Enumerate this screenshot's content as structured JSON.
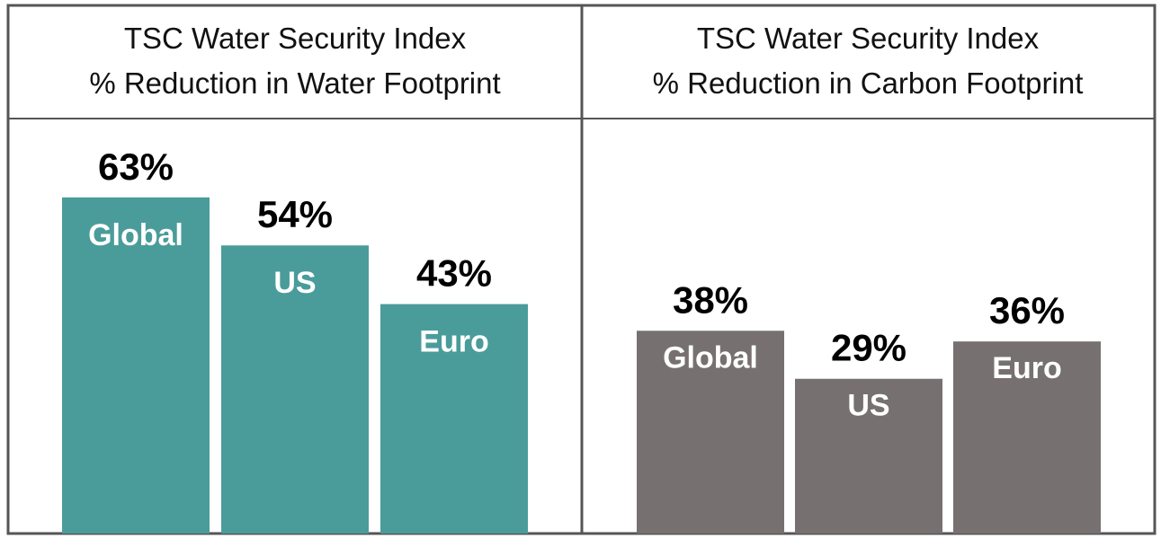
{
  "chart_data": [
    {
      "type": "bar",
      "title_line1": "TSC Water Security Index",
      "title_line2": "% Reduction in Water Footprint",
      "categories": [
        "Global",
        "US",
        "Euro"
      ],
      "values": [
        63,
        54,
        43
      ],
      "value_labels": [
        "63%",
        "54%",
        "43%"
      ],
      "ylim": [
        0,
        100
      ],
      "color": "#4a9c9a",
      "grid": false
    },
    {
      "type": "bar",
      "title_line1": "TSC Water Security Index",
      "title_line2": "% Reduction in Carbon Footprint",
      "categories": [
        "Global",
        "US",
        "Euro"
      ],
      "values": [
        38,
        29,
        36
      ],
      "value_labels": [
        "38%",
        "29%",
        "36%"
      ],
      "ylim": [
        0,
        100
      ],
      "color": "#767170",
      "grid": false
    }
  ]
}
